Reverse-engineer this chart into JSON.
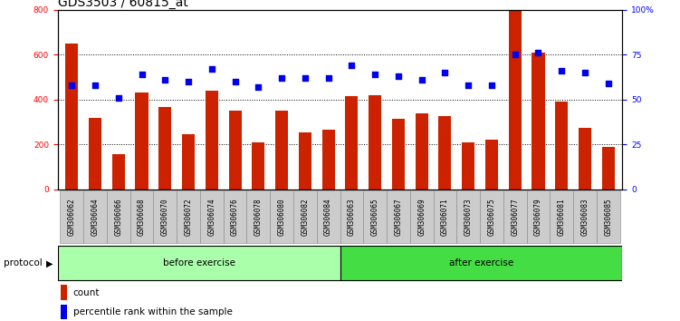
{
  "title": "GDS3503 / 60815_at",
  "categories": [
    "GSM306062",
    "GSM306064",
    "GSM306066",
    "GSM306068",
    "GSM306070",
    "GSM306072",
    "GSM306074",
    "GSM306076",
    "GSM306078",
    "GSM306080",
    "GSM306082",
    "GSM306084",
    "GSM306063",
    "GSM306065",
    "GSM306067",
    "GSM306069",
    "GSM306071",
    "GSM306073",
    "GSM306075",
    "GSM306077",
    "GSM306079",
    "GSM306081",
    "GSM306083",
    "GSM306085"
  ],
  "counts": [
    650,
    320,
    155,
    430,
    365,
    245,
    440,
    350,
    210,
    350,
    255,
    265,
    415,
    420,
    315,
    340,
    325,
    210,
    220,
    800,
    610,
    390,
    275,
    190
  ],
  "percentile": [
    58,
    58,
    51,
    64,
    61,
    60,
    67,
    60,
    57,
    62,
    62,
    62,
    69,
    64,
    63,
    61,
    65,
    58,
    58,
    75,
    76,
    66,
    65,
    59
  ],
  "bar_color": "#cc2200",
  "dot_color": "#0000ee",
  "left_ylim": [
    0,
    800
  ],
  "right_ylim": [
    0,
    100
  ],
  "left_yticks": [
    0,
    200,
    400,
    600,
    800
  ],
  "right_yticks": [
    0,
    25,
    50,
    75,
    100
  ],
  "right_yticklabels": [
    "0",
    "25",
    "50",
    "75",
    "100%"
  ],
  "before_exercise_count": 12,
  "after_exercise_count": 12,
  "protocol_label": "protocol",
  "before_label": "before exercise",
  "after_label": "after exercise",
  "legend_count_label": "count",
  "legend_percentile_label": "percentile rank within the sample",
  "title_fontsize": 10,
  "tick_fontsize": 6.5,
  "label_fontsize": 7.5,
  "cat_fontsize": 5.5,
  "before_color": "#aaffaa",
  "after_color": "#44dd44"
}
